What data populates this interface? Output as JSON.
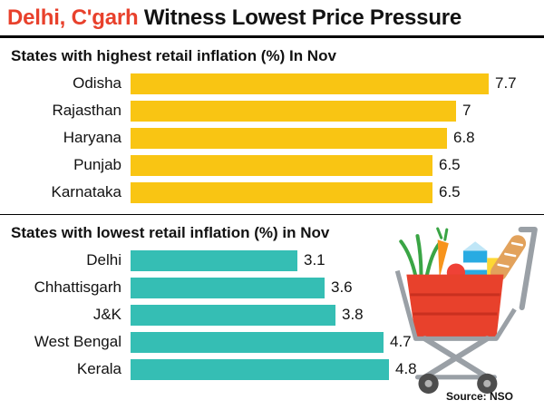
{
  "title": {
    "highlight": "Delhi, C'garh",
    "rest": " Witness Lowest Price Pressure"
  },
  "source": "Source: NSO",
  "colors": {
    "title_highlight": "#e8412c",
    "bar_highest": "#f9c513",
    "bar_lowest": "#35beb4",
    "divider": "#000000"
  },
  "icons": {
    "cart": "shopping-cart-with-groceries"
  },
  "chart_data": [
    {
      "type": "bar",
      "title": "States with highest retail inflation (%) In Nov",
      "categories": [
        "Odisha",
        "Rajasthan",
        "Haryana",
        "Punjab",
        "Karnataka"
      ],
      "values": [
        7.7,
        7,
        6.8,
        6.5,
        6.5
      ],
      "value_labels": [
        "7.7",
        "7",
        "6.8",
        "6.5",
        "6.5"
      ],
      "bar_color": "#f9c513",
      "xlabel": "",
      "ylabel": "",
      "xlim": [
        0,
        8
      ],
      "orientation": "horizontal",
      "grid": false,
      "legend": false
    },
    {
      "type": "bar",
      "title": "States with lowest retail inflation (%) in Nov",
      "categories": [
        "Delhi",
        "Chhattisgarh",
        "J&K",
        "West Bengal",
        "Kerala"
      ],
      "values": [
        3.1,
        3.6,
        3.8,
        4.7,
        4.8
      ],
      "value_labels": [
        "3.1",
        "3.6",
        "3.8",
        "4.7",
        "4.8"
      ],
      "bar_color": "#35beb4",
      "xlabel": "",
      "ylabel": "",
      "xlim": [
        0,
        5
      ],
      "orientation": "horizontal",
      "grid": false,
      "legend": false
    }
  ]
}
